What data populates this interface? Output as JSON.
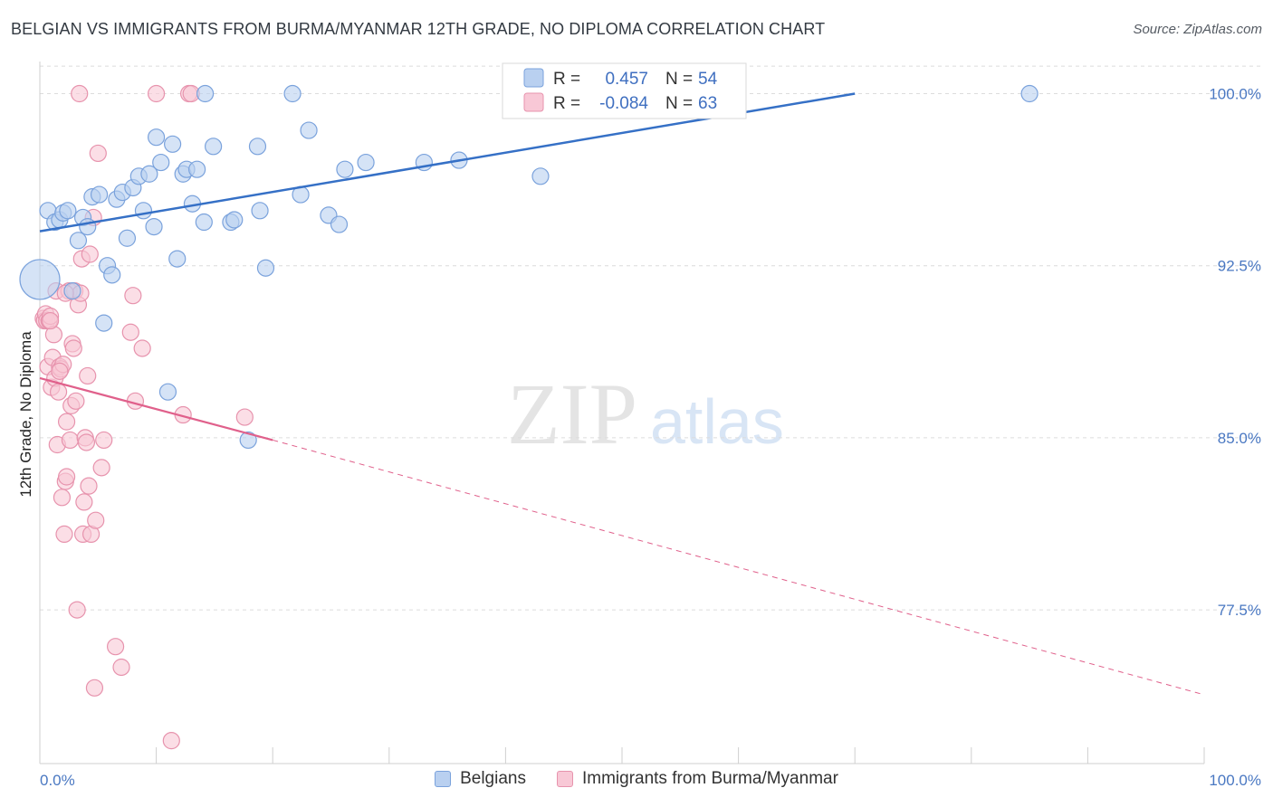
{
  "title": "BELGIAN VS IMMIGRANTS FROM BURMA/MYANMAR 12TH GRADE, NO DIPLOMA CORRELATION CHART",
  "source": "Source: ZipAtlas.com",
  "watermark": {
    "zip": "ZIP",
    "atlas": "atlas"
  },
  "colors": {
    "blue_fill": "#b9d0f0",
    "blue_stroke": "#7aa2dc",
    "blue_line": "#3570c6",
    "pink_fill": "#f8c8d6",
    "pink_stroke": "#e793ad",
    "pink_line": "#e0608b",
    "tick_label": "#4a78c2",
    "grid": "#dcdcdc"
  },
  "legend": {
    "rows": [
      {
        "r_label": "R =",
        "r_value": "0.457",
        "n_label": "N =",
        "n_value": "54"
      },
      {
        "r_label": "R =",
        "r_value": "-0.084",
        "n_label": "N =",
        "n_value": "63"
      }
    ]
  },
  "bottom_legend": {
    "series1": "Belgians",
    "series2": "Immigrants from Burma/Myanmar"
  },
  "chart_data": {
    "type": "scatter",
    "title": "BELGIAN VS IMMIGRANTS FROM BURMA/MYANMAR 12TH GRADE, NO DIPLOMA CORRELATION CHART",
    "xlabel": "",
    "ylabel": "12th Grade, No Diploma",
    "xlim": [
      0,
      100
    ],
    "ylim": [
      70.8,
      101.4
    ],
    "x_tick_labels": [
      "0.0%",
      "100.0%"
    ],
    "y_ticks": [
      77.5,
      85.0,
      92.5,
      100.0
    ],
    "y_tick_labels": [
      "77.5%",
      "85.0%",
      "92.5%",
      "100.0%"
    ],
    "grid": true,
    "legend_position": "top-center",
    "series": [
      {
        "name": "Belgians",
        "R": 0.457,
        "N": 54,
        "trend": {
          "x0": 0,
          "y0": 94.0,
          "x1": 70.0,
          "y1": 100.0,
          "dashed_to": null
        },
        "points": [
          {
            "x": 0.0,
            "y": 91.9,
            "big": true
          },
          {
            "x": 0.7,
            "y": 94.9
          },
          {
            "x": 1.3,
            "y": 94.4
          },
          {
            "x": 1.7,
            "y": 94.5
          },
          {
            "x": 2.0,
            "y": 94.8
          },
          {
            "x": 2.4,
            "y": 94.9
          },
          {
            "x": 2.8,
            "y": 91.4
          },
          {
            "x": 3.3,
            "y": 93.6
          },
          {
            "x": 3.7,
            "y": 94.6
          },
          {
            "x": 4.1,
            "y": 94.2
          },
          {
            "x": 4.5,
            "y": 95.5
          },
          {
            "x": 5.1,
            "y": 95.6
          },
          {
            "x": 5.5,
            "y": 90.0
          },
          {
            "x": 5.8,
            "y": 92.5
          },
          {
            "x": 6.2,
            "y": 92.1
          },
          {
            "x": 6.6,
            "y": 95.4
          },
          {
            "x": 7.1,
            "y": 95.7
          },
          {
            "x": 7.5,
            "y": 93.7
          },
          {
            "x": 8.0,
            "y": 95.9
          },
          {
            "x": 8.5,
            "y": 96.4
          },
          {
            "x": 8.9,
            "y": 94.9
          },
          {
            "x": 9.4,
            "y": 96.5
          },
          {
            "x": 9.8,
            "y": 94.2
          },
          {
            "x": 10.0,
            "y": 98.1
          },
          {
            "x": 10.4,
            "y": 97.0
          },
          {
            "x": 11.0,
            "y": 87.0
          },
          {
            "x": 11.4,
            "y": 97.8
          },
          {
            "x": 11.8,
            "y": 92.8
          },
          {
            "x": 12.3,
            "y": 96.5
          },
          {
            "x": 12.6,
            "y": 96.7
          },
          {
            "x": 13.1,
            "y": 95.2
          },
          {
            "x": 13.5,
            "y": 96.7
          },
          {
            "x": 14.1,
            "y": 94.4
          },
          {
            "x": 14.2,
            "y": 100.0
          },
          {
            "x": 14.9,
            "y": 97.7
          },
          {
            "x": 16.4,
            "y": 94.4
          },
          {
            "x": 16.7,
            "y": 94.5
          },
          {
            "x": 17.9,
            "y": 84.9
          },
          {
            "x": 18.7,
            "y": 97.7
          },
          {
            "x": 18.9,
            "y": 94.9
          },
          {
            "x": 19.4,
            "y": 92.4
          },
          {
            "x": 21.7,
            "y": 100.0
          },
          {
            "x": 22.4,
            "y": 95.6
          },
          {
            "x": 23.1,
            "y": 98.4
          },
          {
            "x": 24.8,
            "y": 94.7
          },
          {
            "x": 25.7,
            "y": 94.3
          },
          {
            "x": 26.2,
            "y": 96.7
          },
          {
            "x": 28.0,
            "y": 97.0
          },
          {
            "x": 33.0,
            "y": 97.0
          },
          {
            "x": 36.0,
            "y": 97.1
          },
          {
            "x": 43.0,
            "y": 96.4
          },
          {
            "x": 49.0,
            "y": 100.0
          },
          {
            "x": 52.0,
            "y": 100.0
          },
          {
            "x": 85.0,
            "y": 100.0
          }
        ]
      },
      {
        "name": "Immigrants from Burma/Myanmar",
        "R": -0.084,
        "N": 63,
        "trend": {
          "x0": 0,
          "y0": 87.6,
          "x1": 20.0,
          "y1": 84.9,
          "dashed_to": {
            "x": 100.0,
            "y": 73.8
          }
        },
        "points": [
          {
            "x": 0.3,
            "y": 90.2
          },
          {
            "x": 0.4,
            "y": 90.1
          },
          {
            "x": 0.5,
            "y": 90.4
          },
          {
            "x": 0.6,
            "y": 90.1
          },
          {
            "x": 0.7,
            "y": 88.1
          },
          {
            "x": 0.8,
            "y": 90.1
          },
          {
            "x": 0.9,
            "y": 90.3
          },
          {
            "x": 1.0,
            "y": 87.2
          },
          {
            "x": 1.1,
            "y": 88.5
          },
          {
            "x": 1.2,
            "y": 89.5
          },
          {
            "x": 1.3,
            "y": 87.6
          },
          {
            "x": 1.4,
            "y": 91.4
          },
          {
            "x": 1.5,
            "y": 84.7
          },
          {
            "x": 1.6,
            "y": 87.0
          },
          {
            "x": 1.7,
            "y": 88.1
          },
          {
            "x": 1.8,
            "y": 88.0
          },
          {
            "x": 1.9,
            "y": 82.4
          },
          {
            "x": 2.0,
            "y": 88.2
          },
          {
            "x": 2.1,
            "y": 80.8
          },
          {
            "x": 2.2,
            "y": 83.1
          },
          {
            "x": 2.3,
            "y": 83.3
          },
          {
            "x": 2.3,
            "y": 85.7
          },
          {
            "x": 2.5,
            "y": 91.4
          },
          {
            "x": 2.6,
            "y": 84.9
          },
          {
            "x": 2.7,
            "y": 86.4
          },
          {
            "x": 2.8,
            "y": 89.1
          },
          {
            "x": 2.9,
            "y": 88.9
          },
          {
            "x": 3.0,
            "y": 91.4
          },
          {
            "x": 3.1,
            "y": 86.6
          },
          {
            "x": 3.2,
            "y": 77.5
          },
          {
            "x": 3.3,
            "y": 90.8
          },
          {
            "x": 3.4,
            "y": 100.0
          },
          {
            "x": 3.5,
            "y": 91.3
          },
          {
            "x": 3.6,
            "y": 92.8
          },
          {
            "x": 3.7,
            "y": 80.8
          },
          {
            "x": 3.8,
            "y": 82.2
          },
          {
            "x": 3.9,
            "y": 85.0
          },
          {
            "x": 4.0,
            "y": 84.8
          },
          {
            "x": 4.1,
            "y": 87.7
          },
          {
            "x": 4.2,
            "y": 82.9
          },
          {
            "x": 4.3,
            "y": 93.0
          },
          {
            "x": 4.4,
            "y": 80.8
          },
          {
            "x": 4.6,
            "y": 94.6
          },
          {
            "x": 4.7,
            "y": 74.1
          },
          {
            "x": 4.8,
            "y": 81.4
          },
          {
            "x": 5.0,
            "y": 97.4
          },
          {
            "x": 5.3,
            "y": 83.7
          },
          {
            "x": 5.5,
            "y": 84.9
          },
          {
            "x": 6.5,
            "y": 75.9
          },
          {
            "x": 7.0,
            "y": 75.0
          },
          {
            "x": 7.8,
            "y": 89.6
          },
          {
            "x": 8.0,
            "y": 91.2
          },
          {
            "x": 8.2,
            "y": 86.6
          },
          {
            "x": 8.8,
            "y": 88.9
          },
          {
            "x": 10.0,
            "y": 100.0
          },
          {
            "x": 11.3,
            "y": 71.8
          },
          {
            "x": 12.3,
            "y": 86.0
          },
          {
            "x": 12.8,
            "y": 100.0
          },
          {
            "x": 13.0,
            "y": 100.0
          },
          {
            "x": 17.6,
            "y": 85.9
          },
          {
            "x": 2.2,
            "y": 91.3
          },
          {
            "x": 1.7,
            "y": 87.9
          },
          {
            "x": 0.9,
            "y": 90.1
          }
        ]
      }
    ]
  }
}
